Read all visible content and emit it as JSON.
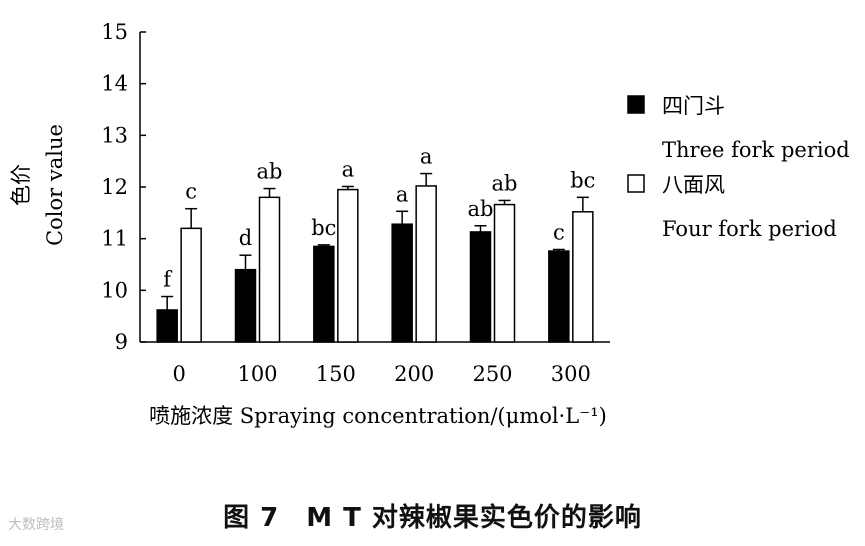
{
  "chart_data": {
    "type": "bar",
    "categories": [
      "0",
      "100",
      "150",
      "200",
      "250",
      "300"
    ],
    "series": [
      {
        "name": "四门斗",
        "name_en": "Three fork period",
        "color": "#000000",
        "values": [
          9.62,
          10.4,
          10.85,
          11.28,
          11.13,
          10.76
        ],
        "errors": [
          0.26,
          0.28,
          0.03,
          0.25,
          0.12,
          0.03
        ],
        "letters": [
          "f",
          "d",
          "bc",
          "a",
          "ab",
          "c"
        ]
      },
      {
        "name": "八面风",
        "name_en": "Four fork period",
        "color": "#ffffff",
        "values": [
          11.2,
          11.8,
          11.95,
          12.02,
          11.66,
          11.52
        ],
        "errors": [
          0.38,
          0.17,
          0.06,
          0.24,
          0.08,
          0.28
        ],
        "letters": [
          "c",
          "ab",
          "a",
          "a",
          "ab",
          "bc"
        ]
      }
    ],
    "ylim": [
      9,
      15
    ],
    "yticks": [
      "9",
      "10",
      "11",
      "12",
      "13",
      "14",
      "15"
    ],
    "ylabel_cn": "色价",
    "ylabel_en": "Color value",
    "xlabel": "喷施浓度 Spraying concentration/(μmol·L⁻¹)",
    "legend_position": "right"
  },
  "caption": "图 7　M T 对辣椒果实色价的影响",
  "watermark": "大数跨境"
}
